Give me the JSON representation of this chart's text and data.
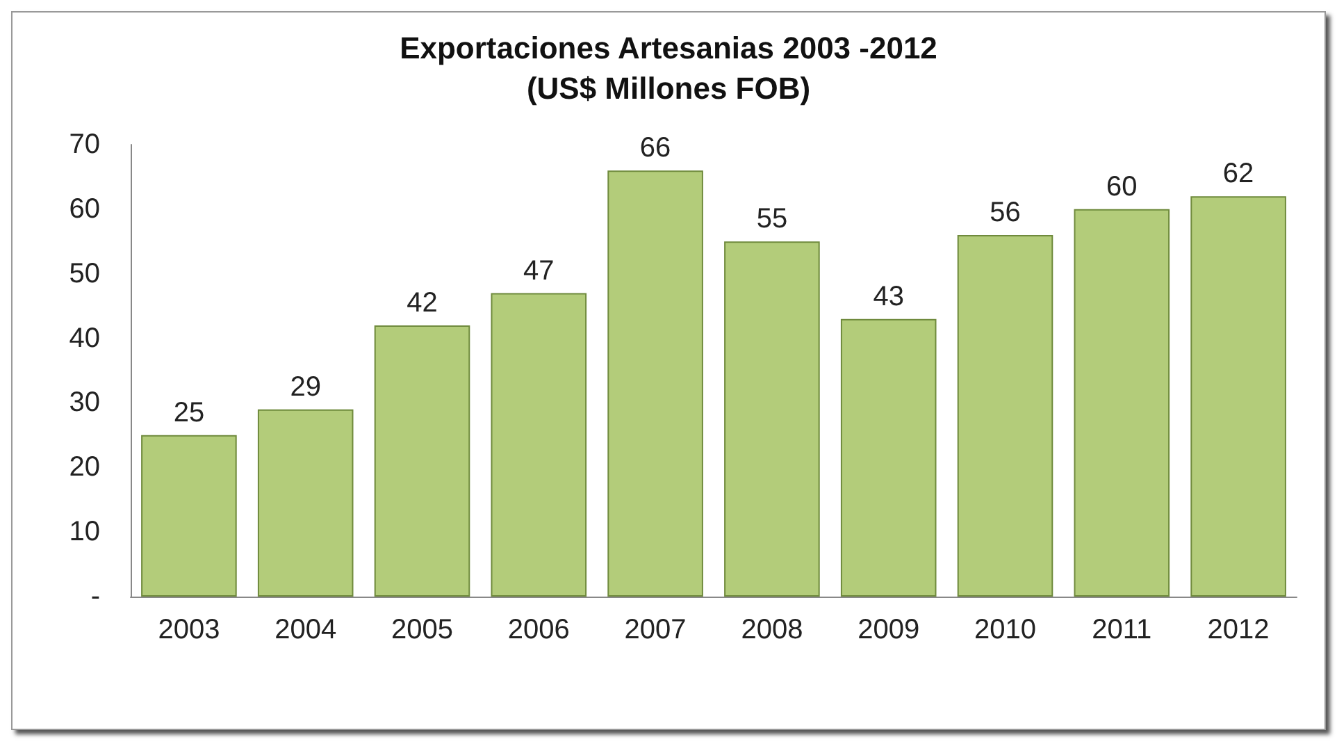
{
  "chart_data": {
    "type": "bar",
    "title": "Exportaciones Artesanias 2003 -2012\n(US$ Millones FOB)",
    "categories": [
      "2003",
      "2004",
      "2005",
      "2006",
      "2007",
      "2008",
      "2009",
      "2010",
      "2011",
      "2012"
    ],
    "values": [
      25,
      29,
      42,
      47,
      66,
      55,
      43,
      56,
      60,
      62
    ],
    "color": "#b3cc7a",
    "ylim": [
      0,
      70
    ],
    "yticks": [
      {
        "value": 0,
        "label": "-"
      },
      10,
      20,
      30,
      40,
      50,
      60,
      70
    ],
    "data_labels": true,
    "grid": false
  }
}
